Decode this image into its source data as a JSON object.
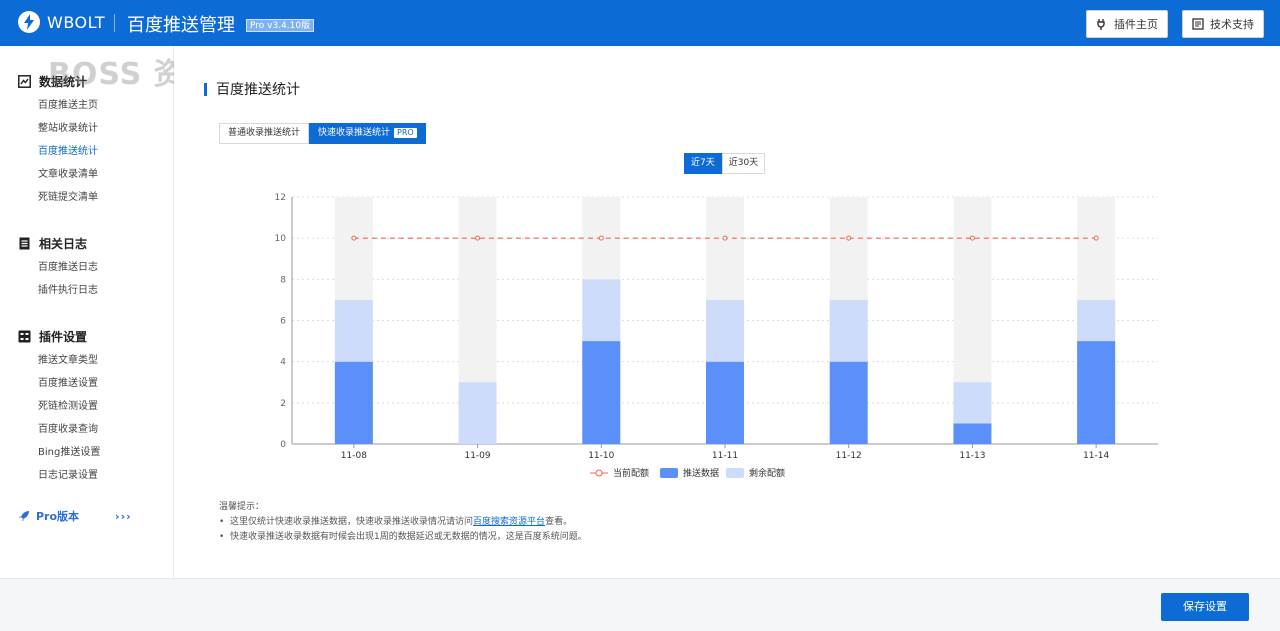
{
  "header": {
    "brand": "WBOLT",
    "app_title": "百度推送管理",
    "version_badge": "Pro v3.4.10版",
    "plugin_home_label": "插件主页",
    "support_label": "技术支持",
    "brand_color": "#0d6bd5"
  },
  "watermark": "BOSS 资源",
  "sidebar": {
    "groups": [
      {
        "title": "数据统计",
        "icon": "chart-icon",
        "items": [
          "百度推送主页",
          "整站收录统计",
          "百度推送统计",
          "文章收录清单",
          "死链提交清单"
        ]
      },
      {
        "title": "相关日志",
        "icon": "document-icon",
        "items": [
          "百度推送日志",
          "插件执行日志"
        ]
      },
      {
        "title": "插件设置",
        "icon": "settings-grid-icon",
        "items": [
          "推送文章类型",
          "百度推送设置",
          "死链检测设置",
          "百度收录查询",
          "Bing推送设置",
          "日志记录设置"
        ]
      }
    ],
    "active_item": "百度推送统计",
    "pro_label": "Pro版本",
    "pro_arrows": "›››"
  },
  "main": {
    "section_title": "百度推送统计",
    "tabs": [
      {
        "label": "普通收录推送统计"
      },
      {
        "label": "快速收录推送统计",
        "badge": "PRO"
      }
    ],
    "range_tabs": [
      "近7天",
      "近30天"
    ],
    "tips_title": "温馨提示：",
    "tip1_prefix": "这里仅统计快速收录推送数据，快速收录推送收录情况请访问",
    "tip1_link": "百度搜索资源平台",
    "tip1_suffix": "查看。",
    "tip2": "快速收录推送收录数据有时候会出现1周的数据延迟或无数据的情况，这是百度系统问题。"
  },
  "footer": {
    "save_label": "保存设置"
  },
  "chart_data": {
    "type": "bar",
    "stacked": true,
    "categories": [
      "11-08",
      "11-09",
      "11-10",
      "11-11",
      "11-12",
      "11-13",
      "11-14"
    ],
    "series": [
      {
        "name": "推送数据",
        "values": [
          4,
          0,
          5,
          4,
          4,
          1,
          5
        ],
        "color": "#5b8ff9"
      },
      {
        "name": "剩余配额",
        "values": [
          3,
          3,
          3,
          3,
          3,
          2,
          2
        ],
        "color": "#cddcfa"
      },
      {
        "name": "当前配额",
        "type": "line",
        "values": [
          10,
          10,
          10,
          10,
          10,
          10,
          10
        ],
        "color": "#f4664a"
      }
    ],
    "ylim": [
      0,
      12
    ],
    "yticks": [
      0,
      2,
      4,
      6,
      8,
      10,
      12
    ],
    "grid": true,
    "legend": "bottom",
    "bar_background": "#f2f2f2"
  }
}
